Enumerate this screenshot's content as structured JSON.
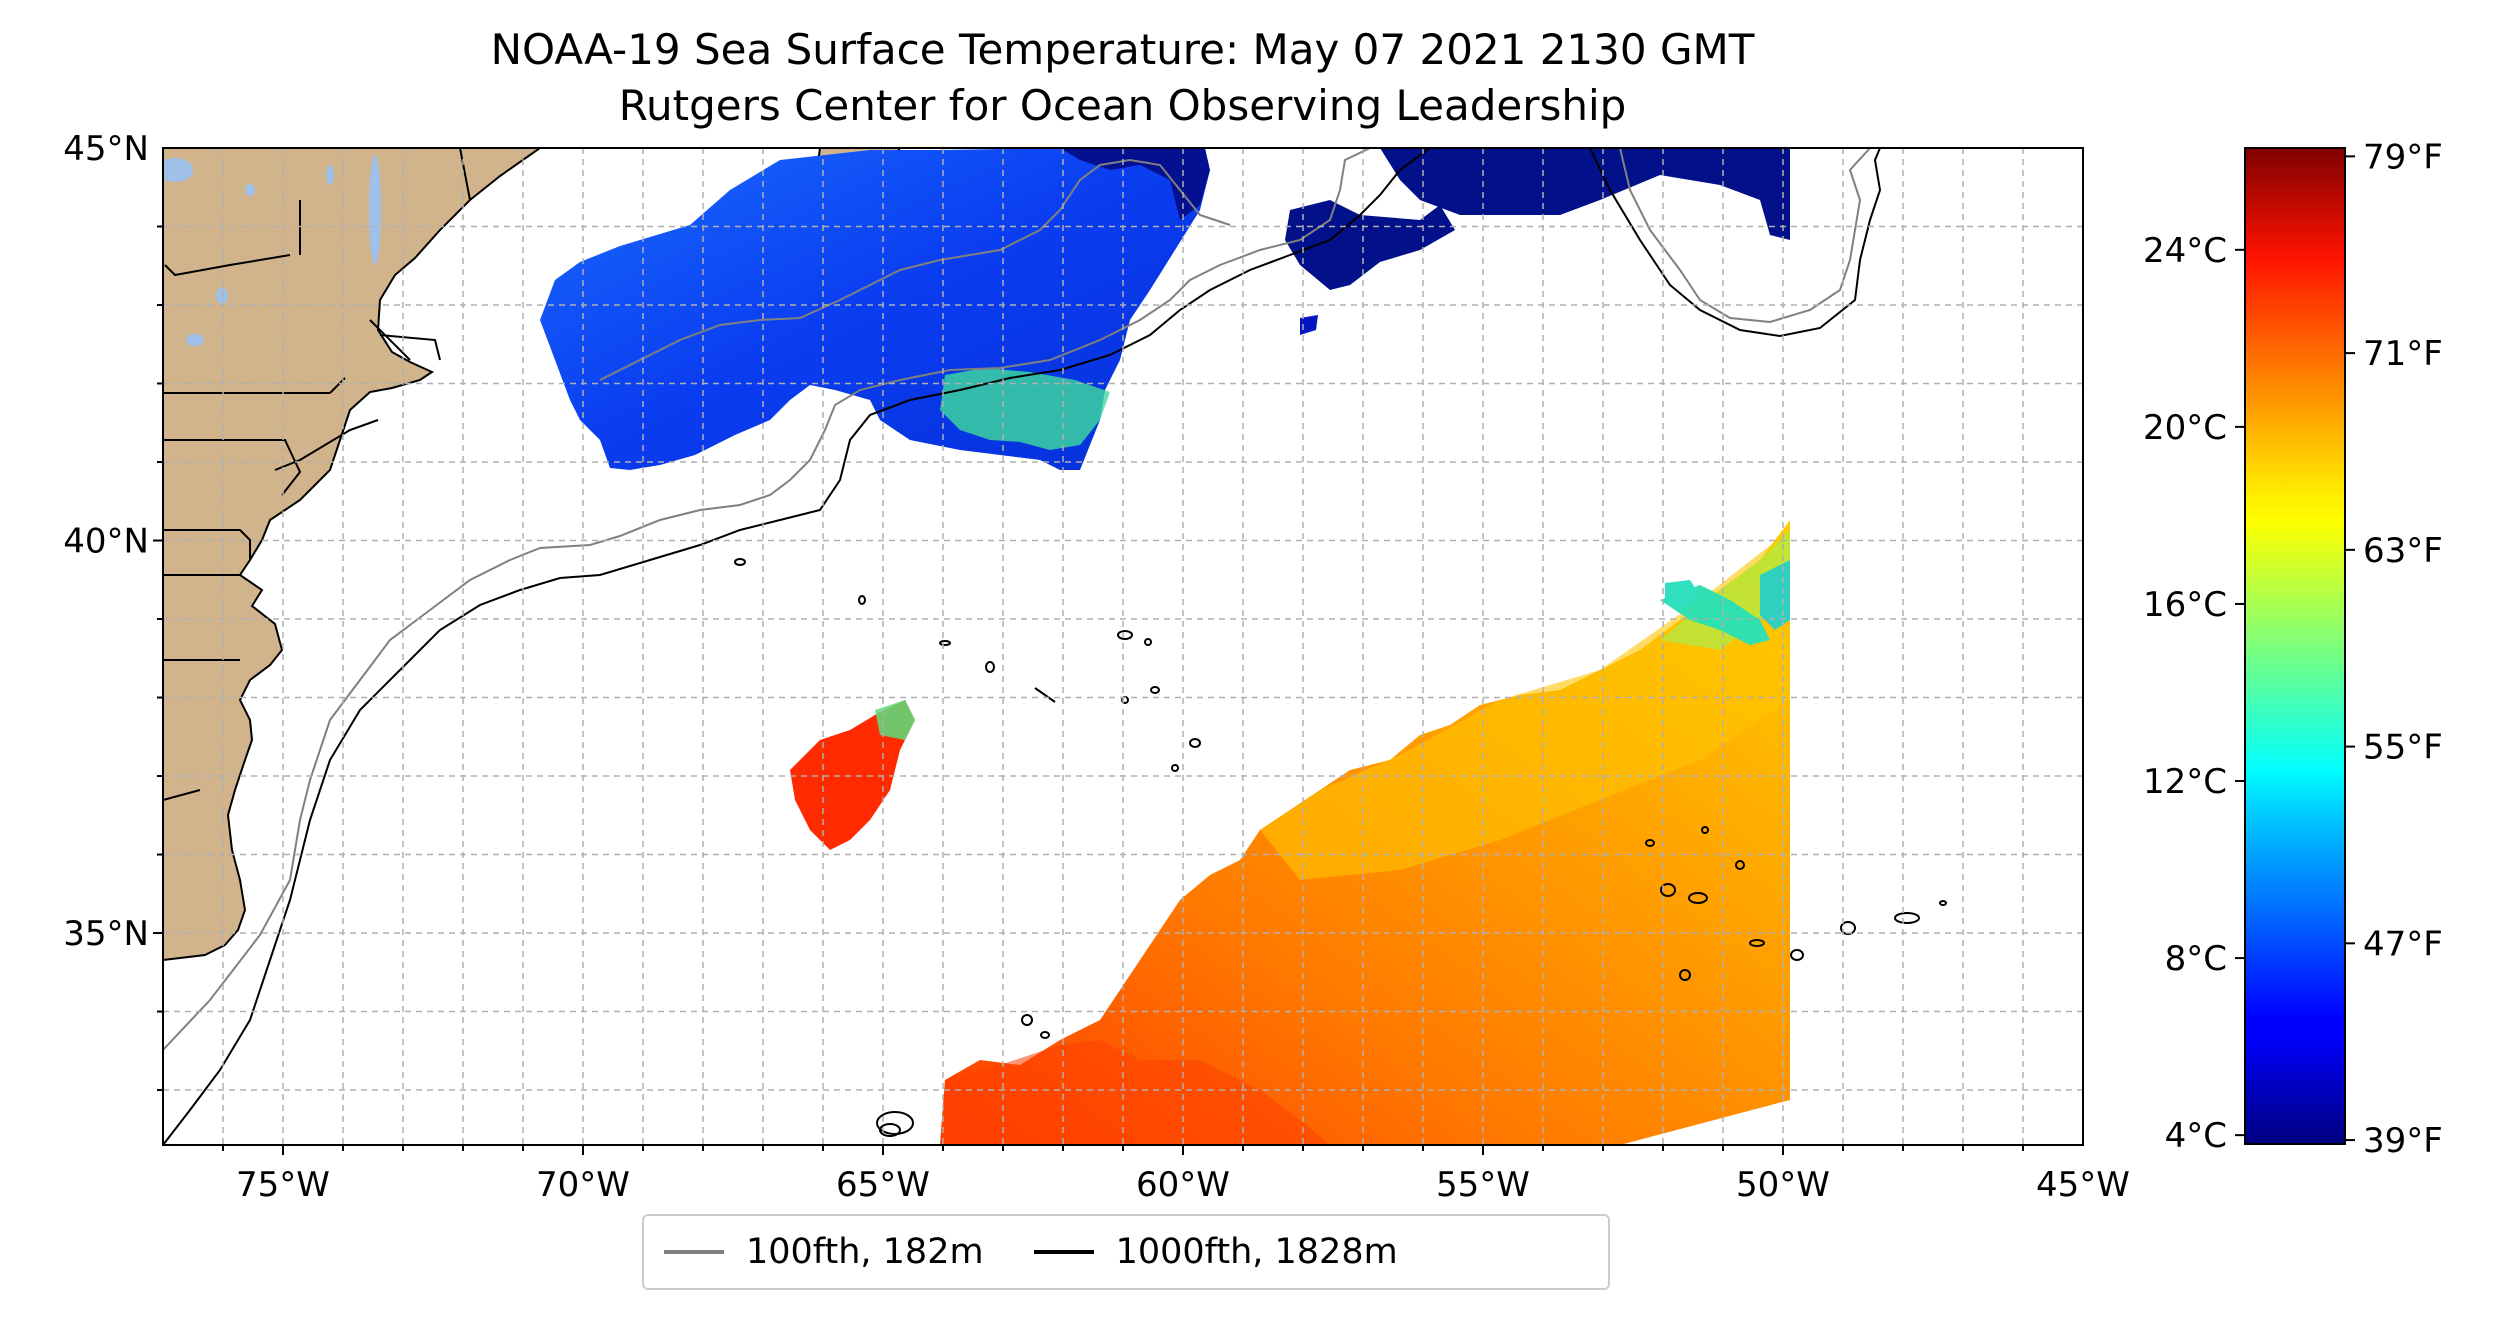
{
  "title": {
    "line1": "NOAA-19 Sea Surface Temperature: May 07 2021 2130 GMT",
    "line2": "Rutgers Center for Ocean Observing Leadership"
  },
  "map": {
    "lon_range": [
      -77,
      -45
    ],
    "lat_range": [
      32.3,
      45
    ],
    "lon_ticks": [
      {
        "value": -75,
        "label": "75°W"
      },
      {
        "value": -70,
        "label": "70°W"
      },
      {
        "value": -65,
        "label": "65°W"
      },
      {
        "value": -60,
        "label": "60°W"
      },
      {
        "value": -55,
        "label": "55°W"
      },
      {
        "value": -50,
        "label": "50°W"
      },
      {
        "value": -45,
        "label": "45°W"
      }
    ],
    "lat_ticks": [
      {
        "value": 45,
        "label": "45°N"
      },
      {
        "value": 40,
        "label": "40°N"
      },
      {
        "value": 35,
        "label": "35°N"
      }
    ],
    "grid": true,
    "land_color": "#D2B48C",
    "lake_color": "#9fc0e8"
  },
  "legend": {
    "placement": "below map",
    "items": [
      {
        "label": "100fth, 182m",
        "color": "#808080"
      },
      {
        "label": "1000fth, 1828m",
        "color": "#000000"
      }
    ]
  },
  "colorbar": {
    "colormap": "jet",
    "range_c": [
      3.8,
      26.3
    ],
    "celsius_ticks": [
      {
        "value": 4,
        "label": "4°C"
      },
      {
        "value": 8,
        "label": "8°C"
      },
      {
        "value": 12,
        "label": "12°C"
      },
      {
        "value": 16,
        "label": "16°C"
      },
      {
        "value": 20,
        "label": "20°C"
      },
      {
        "value": 24,
        "label": "24°C"
      }
    ],
    "fahrenheit_ticks": [
      {
        "value": 39,
        "label": "39°F"
      },
      {
        "value": 47,
        "label": "47°F"
      },
      {
        "value": 55,
        "label": "55°F"
      },
      {
        "value": 63,
        "label": "63°F"
      },
      {
        "value": 71,
        "label": "71°F"
      },
      {
        "value": 79,
        "label": "79°F"
      }
    ]
  }
}
